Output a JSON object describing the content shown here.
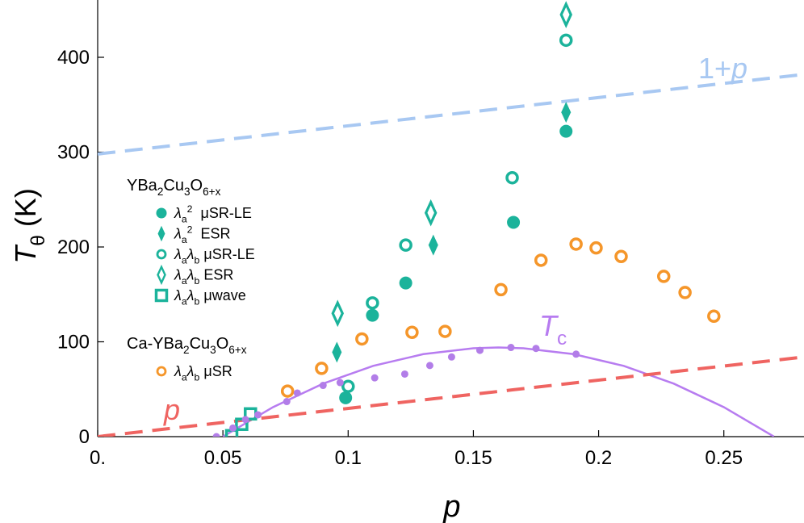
{
  "chart_data": {
    "type": "scatter",
    "x_label": [
      {
        "text": "p",
        "style": "i"
      }
    ],
    "y_label": [
      {
        "text": "T",
        "style": "i"
      },
      {
        "text": "θ",
        "style": "sub"
      },
      {
        "text": " (K)"
      }
    ],
    "xlim": [
      0,
      0.282
    ],
    "ylim": [
      0,
      460
    ],
    "xticks": [
      {
        "value": 0,
        "label": "0."
      },
      0.05,
      {
        "value": 0.1,
        "label": "0.1"
      },
      0.15,
      {
        "value": 0.2,
        "label": "0.2"
      },
      0.25
    ],
    "yticks": [
      0,
      100,
      200,
      300,
      400
    ],
    "groups": [
      [
        {
          "text": "YBa"
        },
        {
          "text": "2",
          "style": "sub"
        },
        {
          "text": "Cu"
        },
        {
          "text": "3",
          "style": "sub"
        },
        {
          "text": "O"
        },
        {
          "text": "6+x",
          "style": "sub"
        }
      ],
      [
        {
          "text": "Ca-YBa"
        },
        {
          "text": "2",
          "style": "sub"
        },
        {
          "text": "Cu"
        },
        {
          "text": "3",
          "style": "sub"
        },
        {
          "text": "O"
        },
        {
          "text": "6+x",
          "style": "sub"
        }
      ]
    ],
    "annotations": [
      [
        {
          "text": "1+"
        },
        {
          "text": "p",
          "style": "i"
        }
      ],
      [
        {
          "text": "p",
          "style": "i"
        }
      ],
      [
        {
          "text": "T",
          "style": "i"
        },
        {
          "text": "c",
          "style": "sub"
        }
      ]
    ],
    "series": [
      {
        "name": [
          {
            "text": "λ",
            "style": "i"
          },
          {
            "text": "a",
            "style": "sub"
          },
          {
            "text": "2",
            "style": "sup"
          },
          {
            "text": "  μSR-LE"
          }
        ],
        "group": 0,
        "marker": "filled-circle",
        "color": "#1bb39b",
        "x": [
          0.099,
          0.1097,
          0.123,
          0.166,
          0.187
        ],
        "values": [
          41,
          128,
          162,
          226,
          322
        ]
      },
      {
        "name": [
          {
            "text": "λ",
            "style": "i"
          },
          {
            "text": "a",
            "style": "sub"
          },
          {
            "text": "2",
            "style": "sup"
          },
          {
            "text": "  ESR"
          }
        ],
        "group": 0,
        "marker": "filled-diamond",
        "color": "#1bb39b",
        "x": [
          0.0955,
          0.134,
          0.187
        ],
        "values": [
          89,
          202,
          342
        ]
      },
      {
        "name": [
          {
            "text": "λ",
            "style": "i"
          },
          {
            "text": "a",
            "style": "sub"
          },
          {
            "text": "λ",
            "style": "i"
          },
          {
            "text": "b",
            "style": "sub"
          },
          {
            "text": " μSR-LE"
          }
        ],
        "group": 0,
        "marker": "open-circle",
        "color": "#1bb39b",
        "x": [
          0.1,
          0.1097,
          0.123,
          0.1655,
          0.187
        ],
        "values": [
          53,
          141,
          202,
          273,
          418
        ]
      },
      {
        "name": [
          {
            "text": "λ",
            "style": "i"
          },
          {
            "text": "a",
            "style": "sub"
          },
          {
            "text": "λ",
            "style": "i"
          },
          {
            "text": "b",
            "style": "sub"
          },
          {
            "text": " ESR"
          }
        ],
        "group": 0,
        "marker": "open-diamond",
        "color": "#1bb39b",
        "x": [
          0.0958,
          0.133,
          0.187
        ],
        "values": [
          130,
          236,
          445
        ]
      },
      {
        "name": [
          {
            "text": "λ",
            "style": "i"
          },
          {
            "text": "a",
            "style": "sub"
          },
          {
            "text": "λ",
            "style": "i"
          },
          {
            "text": "b",
            "style": "sub"
          },
          {
            "text": " μwave"
          }
        ],
        "group": 0,
        "marker": "open-square",
        "color": "#1bb39b",
        "x": [
          0.0535,
          0.0575,
          0.061
        ],
        "values": [
          1,
          13,
          24
        ]
      },
      {
        "name": [
          {
            "text": "λ",
            "style": "i"
          },
          {
            "text": "a",
            "style": "sub"
          },
          {
            "text": "λ",
            "style": "i"
          },
          {
            "text": "b",
            "style": "sub"
          },
          {
            "text": " μSR"
          }
        ],
        "group": 1,
        "marker": "open-circle",
        "color": "#f5962a",
        "x": [
          0.0758,
          0.0894,
          0.1055,
          0.1255,
          0.1387,
          0.161,
          0.177,
          0.191,
          0.199,
          0.209,
          0.226,
          0.2345,
          0.246
        ],
        "values": [
          48,
          72,
          103,
          110,
          111,
          155,
          186,
          203,
          199,
          190,
          169,
          152,
          127
        ]
      },
      {
        "marker": "dot",
        "color": "#b27de8",
        "x": [
          0.0474,
          0.054,
          0.059,
          0.064,
          0.0755,
          0.0797,
          0.09,
          0.0968,
          0.1106,
          0.1226,
          0.1326,
          0.1413,
          0.1526,
          0.165,
          0.175,
          0.191
        ],
        "values": [
          0,
          9,
          18,
          23,
          37,
          46,
          54,
          57,
          62,
          66,
          75,
          84,
          91,
          94,
          93,
          87
        ]
      },
      {
        "marker": "line",
        "color": "#b77cf0",
        "x": [
          0.05,
          0.07,
          0.09,
          0.11,
          0.13,
          0.15,
          0.16,
          0.17,
          0.19,
          0.21,
          0.23,
          0.25,
          0.27
        ],
        "values": [
          0.05,
          31.1,
          55.9,
          74.6,
          87,
          93.2,
          94,
          93.2,
          87,
          74.6,
          55.9,
          31.1,
          0.05
        ]
      },
      {
        "marker": "dashed-line",
        "color": "#a8c8f2",
        "x": [
          0,
          0.282
        ],
        "values": [
          298,
          382
        ]
      },
      {
        "marker": "dashed-line",
        "color": "#ef6461",
        "x": [
          0,
          0.282
        ],
        "values": [
          0,
          84
        ]
      }
    ]
  }
}
